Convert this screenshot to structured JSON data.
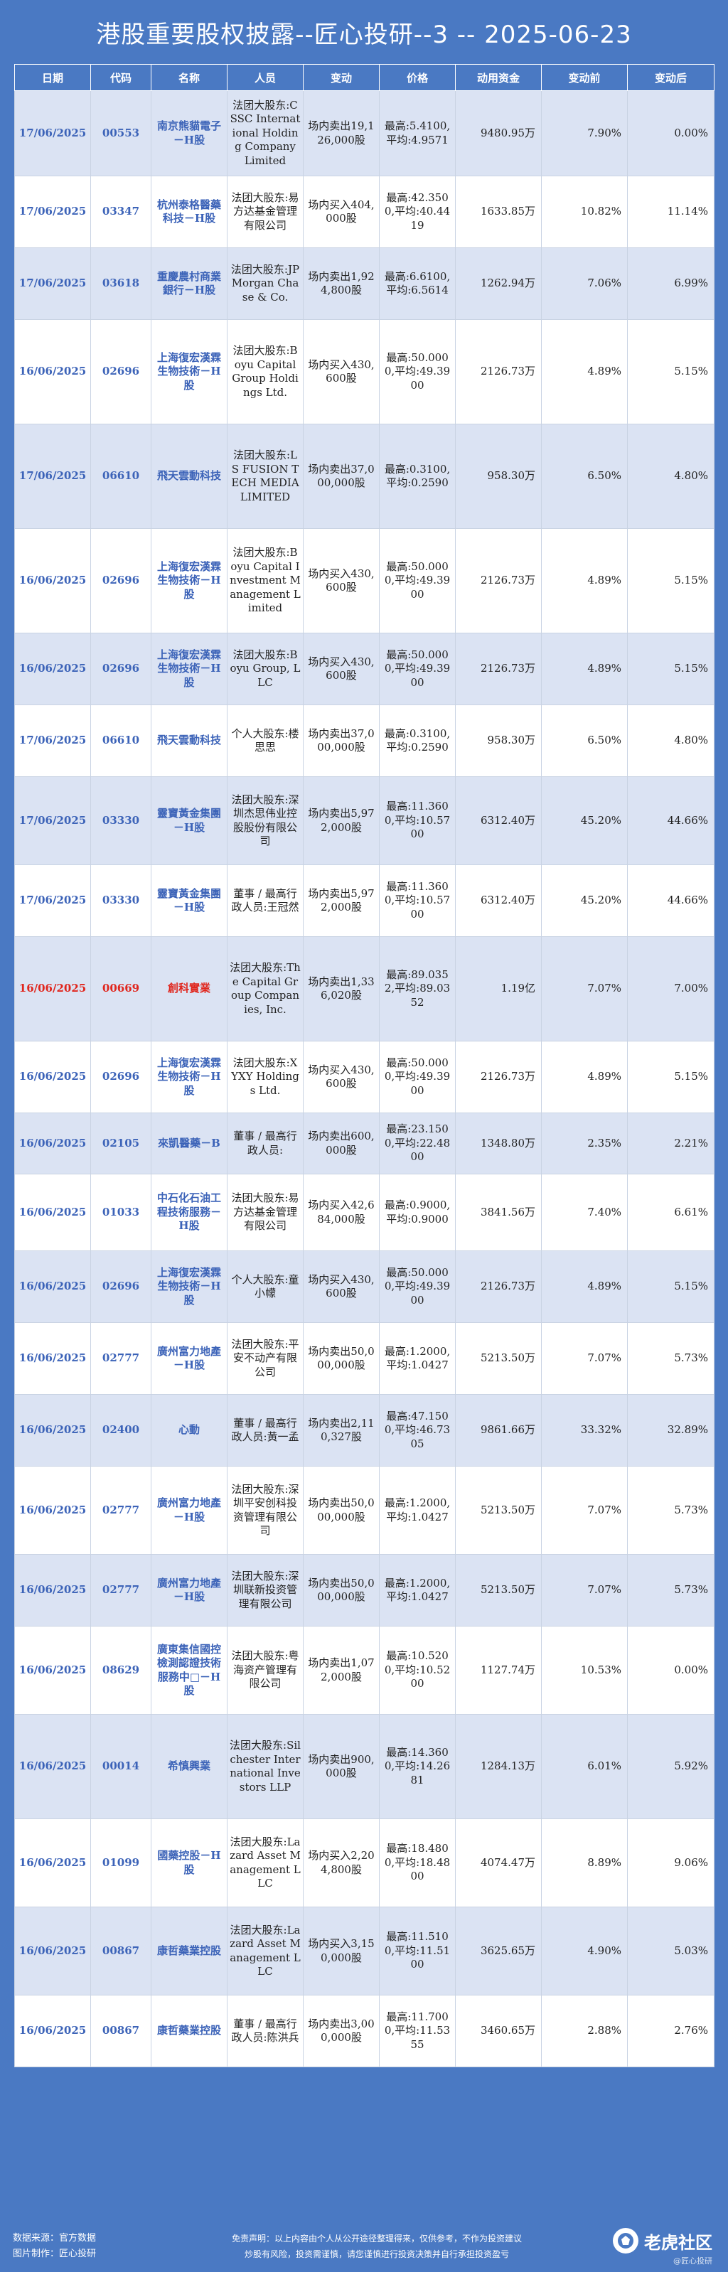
{
  "title": "港股重要股权披露--匠心投研--3 -- 2025-06-23",
  "columns": [
    "日期",
    "代码",
    "名称",
    "人员",
    "变动",
    "价格",
    "动用资金",
    "变动前",
    "变动后"
  ],
  "rows": [
    {
      "date": "17/06/2025",
      "code": "00553",
      "name": "南京熊貓電子－H股",
      "person": "法团大股东:CSSC International Holding Company Limited",
      "change": "场内卖出19,126,000股",
      "price": "最高:5.4100,平均:4.9571",
      "funds": "9480.95万",
      "before": "7.90%",
      "after": "0.00%",
      "h": 120
    },
    {
      "date": "17/06/2025",
      "code": "03347",
      "name": "杭州泰格醫藥科技－H股",
      "person": "法团大股东:易方达基金管理有限公司",
      "change": "场内买入404,000股",
      "price": "最高:42.3500,平均:40.4419",
      "funds": "1633.85万",
      "before": "10.82%",
      "after": "11.14%",
      "h": 101
    },
    {
      "date": "17/06/2025",
      "code": "03618",
      "name": "重慶農村商業銀行－H股",
      "person": "法团大股东:JPMorgan Chase & Co.",
      "change": "场内卖出1,924,800股",
      "price": "最高:6.6100,平均:6.5614",
      "funds": "1262.94万",
      "before": "7.06%",
      "after": "6.99%",
      "h": 101
    },
    {
      "date": "16/06/2025",
      "code": "02696",
      "name": "上海復宏漢霖生物技術－H股",
      "person": "法团大股东:Boyu Capital Group Holdings Ltd.",
      "change": "场内买入430,600股",
      "price": "最高:50.0000,平均:49.3900",
      "funds": "2126.73万",
      "before": "4.89%",
      "after": "5.15%",
      "h": 147
    },
    {
      "date": "17/06/2025",
      "code": "06610",
      "name": "飛天雲動科技",
      "person": "法团大股东:LS FUSION TECH MEDIA LIMITED",
      "change": "场内卖出37,000,000股",
      "price": "最高:0.3100,平均:0.2590",
      "funds": "958.30万",
      "before": "6.50%",
      "after": "4.80%",
      "h": 147
    },
    {
      "date": "16/06/2025",
      "code": "02696",
      "name": "上海復宏漢霖生物技術－H股",
      "person": "法团大股东:Boyu Capital Investment Management Limited",
      "change": "场内买入430,600股",
      "price": "最高:50.0000,平均:49.3900",
      "funds": "2126.73万",
      "before": "4.89%",
      "after": "5.15%",
      "h": 147
    },
    {
      "date": "16/06/2025",
      "code": "02696",
      "name": "上海復宏漢霖生物技術－H股",
      "person": "法团大股东:Boyu Group, LLC",
      "change": "场内买入430,600股",
      "price": "最高:50.0000,平均:49.3900",
      "funds": "2126.73万",
      "before": "4.89%",
      "after": "5.15%",
      "h": 101
    },
    {
      "date": "17/06/2025",
      "code": "06610",
      "name": "飛天雲動科技",
      "person": "个人大股东:楼思思",
      "change": "场内卖出37,000,000股",
      "price": "最高:0.3100,平均:0.2590",
      "funds": "958.30万",
      "before": "6.50%",
      "after": "4.80%",
      "h": 101
    },
    {
      "date": "17/06/2025",
      "code": "03330",
      "name": "靈寶黃金集團－H股",
      "person": "法团大股东:深圳杰思伟业控股股份有限公司",
      "change": "场内卖出5,972,000股",
      "price": "最高:11.3600,平均:10.5700",
      "funds": "6312.40万",
      "before": "45.20%",
      "after": "44.66%",
      "h": 124
    },
    {
      "date": "17/06/2025",
      "code": "03330",
      "name": "靈寶黃金集團－H股",
      "person": "董事 / 最高行政人员:王冠然",
      "change": "场内卖出5,972,000股",
      "price": "最高:11.3600,平均:10.5700",
      "funds": "6312.40万",
      "before": "45.20%",
      "after": "44.66%",
      "h": 101
    },
    {
      "date": "16/06/2025",
      "code": "00669",
      "name": "創科實業",
      "person": "法团大股东:The Capital Group Companies, Inc.",
      "change": "场内卖出1,336,020股",
      "price": "最高:89.0352,平均:89.0352",
      "funds": "1.19亿",
      "before": "7.07%",
      "after": "7.00%",
      "h": 147,
      "red": true
    },
    {
      "date": "16/06/2025",
      "code": "02696",
      "name": "上海復宏漢霖生物技術－H股",
      "person": "法团大股东:XYXY Holdings Ltd.",
      "change": "场内买入430,600股",
      "price": "最高:50.0000,平均:49.3900",
      "funds": "2126.73万",
      "before": "4.89%",
      "after": "5.15%",
      "h": 101
    },
    {
      "date": "16/06/2025",
      "code": "02105",
      "name": "來凱醫藥－B",
      "person": "董事 / 最高行政人员:",
      "change": "场内卖出600,000股",
      "price": "最高:23.1500,平均:22.4800",
      "funds": "1348.80万",
      "before": "2.35%",
      "after": "2.21%",
      "h": 86
    },
    {
      "date": "16/06/2025",
      "code": "01033",
      "name": "中石化石油工程技術服務－H股",
      "person": "法团大股东:易方达基金管理有限公司",
      "change": "场内买入42,684,000股",
      "price": "最高:0.9000,平均:0.9000",
      "funds": "3841.56万",
      "before": "7.40%",
      "after": "6.61%",
      "h": 108
    },
    {
      "date": "16/06/2025",
      "code": "02696",
      "name": "上海復宏漢霖生物技術－H股",
      "person": "个人大股东:童小幪",
      "change": "场内买入430,600股",
      "price": "最高:50.0000,平均:49.3900",
      "funds": "2126.73万",
      "before": "4.89%",
      "after": "5.15%",
      "h": 101
    },
    {
      "date": "16/06/2025",
      "code": "02777",
      "name": "廣州富力地產－H股",
      "person": "法团大股东:平安不动产有限公司",
      "change": "场内卖出50,000,000股",
      "price": "最高:1.2000,平均:1.0427",
      "funds": "5213.50万",
      "before": "7.07%",
      "after": "5.73%",
      "h": 101
    },
    {
      "date": "16/06/2025",
      "code": "02400",
      "name": "心動",
      "person": "董事 / 最高行政人员:黄一孟",
      "change": "场内卖出2,110,327股",
      "price": "最高:47.1500,平均:46.7305",
      "funds": "9861.66万",
      "before": "33.32%",
      "after": "32.89%",
      "h": 101
    },
    {
      "date": "16/06/2025",
      "code": "02777",
      "name": "廣州富力地產－H股",
      "person": "法团大股东:深圳平安创科投资管理有限公司",
      "change": "场内卖出50,000,000股",
      "price": "最高:1.2000,平均:1.0427",
      "funds": "5213.50万",
      "before": "7.07%",
      "after": "5.73%",
      "h": 124
    },
    {
      "date": "16/06/2025",
      "code": "02777",
      "name": "廣州富力地產－H股",
      "person": "法团大股东:深圳联新投资管理有限公司",
      "change": "场内卖出50,000,000股",
      "price": "最高:1.2000,平均:1.0427",
      "funds": "5213.50万",
      "before": "7.07%",
      "after": "5.73%",
      "h": 101
    },
    {
      "date": "16/06/2025",
      "code": "08629",
      "name": "廣東集信國控檢測認證技術服務中□－H股",
      "person": "法团大股东:粤海资产管理有限公司",
      "change": "场内卖出1,072,000股",
      "price": "最高:10.5200,平均:10.5200",
      "funds": "1127.74万",
      "before": "10.53%",
      "after": "0.00%",
      "h": 124
    },
    {
      "date": "16/06/2025",
      "code": "00014",
      "name": "希慎興業",
      "person": "法团大股东:Silchester International Investors LLP",
      "change": "场内卖出900,000股",
      "price": "最高:14.3600,平均:14.2681",
      "funds": "1284.13万",
      "before": "6.01%",
      "after": "5.92%",
      "h": 147
    },
    {
      "date": "16/06/2025",
      "code": "01099",
      "name": "國藥控股－H股",
      "person": "法团大股东:Lazard Asset Management LLC",
      "change": "场内买入2,204,800股",
      "price": "最高:18.4800,平均:18.4800",
      "funds": "4074.47万",
      "before": "8.89%",
      "after": "9.06%",
      "h": 124
    },
    {
      "date": "16/06/2025",
      "code": "00867",
      "name": "康哲藥業控股",
      "person": "法团大股东:Lazard Asset Management LLC",
      "change": "场内买入3,150,000股",
      "price": "最高:11.5100,平均:11.5100",
      "funds": "3625.65万",
      "before": "4.90%",
      "after": "5.03%",
      "h": 124
    },
    {
      "date": "16/06/2025",
      "code": "00867",
      "name": "康哲藥業控股",
      "person": "董事 / 最高行政人员:陈洪兵",
      "change": "场内卖出3,000,000股",
      "price": "最高:11.7000,平均:11.5355",
      "funds": "3460.65万",
      "before": "2.88%",
      "after": "2.76%",
      "h": 101
    }
  ],
  "footer": {
    "source": "数据来源：官方数据",
    "maker": "图片制作：匠心投研",
    "disclaimer_1": "免责声明：以上内容由个人从公开途径整理得来，仅供参考，不作为投资建议",
    "disclaimer_2": "炒股有风险，投资需谨慎，请您谨慎进行投资决策并自行承担投资盈亏",
    "logo_text": "老虎社区",
    "logo_sub": "@匠心投研"
  }
}
